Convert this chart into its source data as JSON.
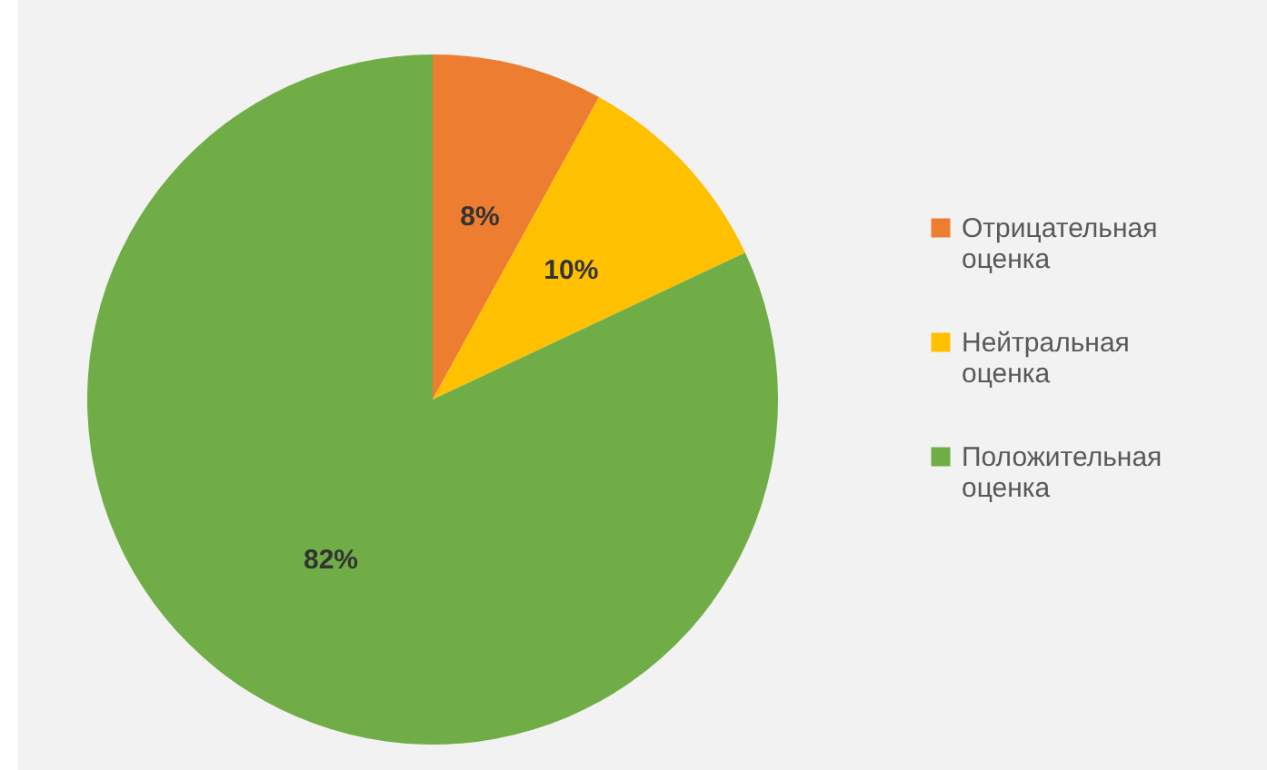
{
  "chart_data": {
    "type": "pie",
    "categories": [
      "Отрицательная оценка",
      "Нейтральная оценка",
      "Положительная оценка"
    ],
    "values": [
      8,
      10,
      82
    ],
    "colors": [
      "#ed7d31",
      "#ffc000",
      "#70ad47"
    ],
    "value_labels": [
      "8%",
      "10%",
      "82%"
    ],
    "legend": "right"
  }
}
